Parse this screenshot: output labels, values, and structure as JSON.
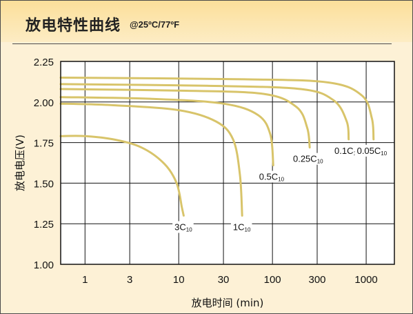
{
  "header": {
    "title": "放电特性曲线",
    "condition": "@25ºC/77ºF"
  },
  "colors": {
    "curve": "#d8c46a",
    "background": "#fdf1d6",
    "plot": "#ffffff",
    "header_top": "#fbdf9a",
    "grid": "#111111"
  },
  "chart_data": {
    "type": "line",
    "title": "放电特性曲线",
    "xlabel": "放电时间 (min)",
    "ylabel": "放电电压(V)",
    "xscale": "log",
    "xlim": [
      0.55,
      2000
    ],
    "ylim": [
      1.0,
      2.25
    ],
    "x_ticks": [
      1,
      3,
      10,
      30,
      100,
      300,
      1000
    ],
    "x_tick_labels": [
      "1",
      "3",
      "10",
      "30",
      "100",
      "300",
      "1000"
    ],
    "y_ticks": [
      1.0,
      1.25,
      1.5,
      1.75,
      2.0,
      2.25
    ],
    "y_tick_labels": [
      "1.00",
      "1.25",
      "1.50",
      "1.75",
      "2.00",
      "2.25"
    ],
    "grid": true,
    "series": [
      {
        "name": "3C10",
        "label_main": "3C",
        "label_sub": "10",
        "x": [
          0.55,
          1.0,
          2.0,
          4.0,
          7.0,
          9.5,
          10.8,
          11.3
        ],
        "y": [
          1.79,
          1.79,
          1.77,
          1.72,
          1.62,
          1.5,
          1.35,
          1.3
        ]
      },
      {
        "name": "1C10",
        "label_main": "1C",
        "label_sub": "10",
        "x": [
          0.55,
          2.0,
          10.0,
          25.0,
          38.0,
          45.0,
          47.5
        ],
        "y": [
          1.99,
          1.98,
          1.95,
          1.88,
          1.77,
          1.55,
          1.3
        ]
      },
      {
        "name": "0.5C10",
        "label_main": "0.5C",
        "label_sub": "10",
        "x": [
          0.55,
          5.0,
          30.0,
          70.0,
          95.0,
          102.0
        ],
        "y": [
          2.03,
          2.02,
          1.99,
          1.92,
          1.8,
          1.61
        ]
      },
      {
        "name": "0.25C10",
        "label_main": "0.25C",
        "label_sub": "10",
        "x": [
          0.55,
          10.0,
          80.0,
          180.0,
          235.0,
          250.0
        ],
        "y": [
          2.08,
          2.07,
          2.05,
          1.97,
          1.84,
          1.72
        ]
      },
      {
        "name": "0.1C10",
        "label_main": "0.1C",
        "label_sub": "10",
        "x": [
          0.55,
          20.0,
          200.0,
          450.0,
          620.0,
          650.0
        ],
        "y": [
          2.11,
          2.1,
          2.08,
          2.01,
          1.88,
          1.77
        ]
      },
      {
        "name": "0.05C10",
        "label_main": "0.05C",
        "label_sub": "10",
        "x": [
          0.55,
          50.0,
          400.0,
          900.0,
          1150.0,
          1200.0
        ],
        "y": [
          2.15,
          2.14,
          2.12,
          2.04,
          1.9,
          1.77
        ]
      }
    ]
  }
}
